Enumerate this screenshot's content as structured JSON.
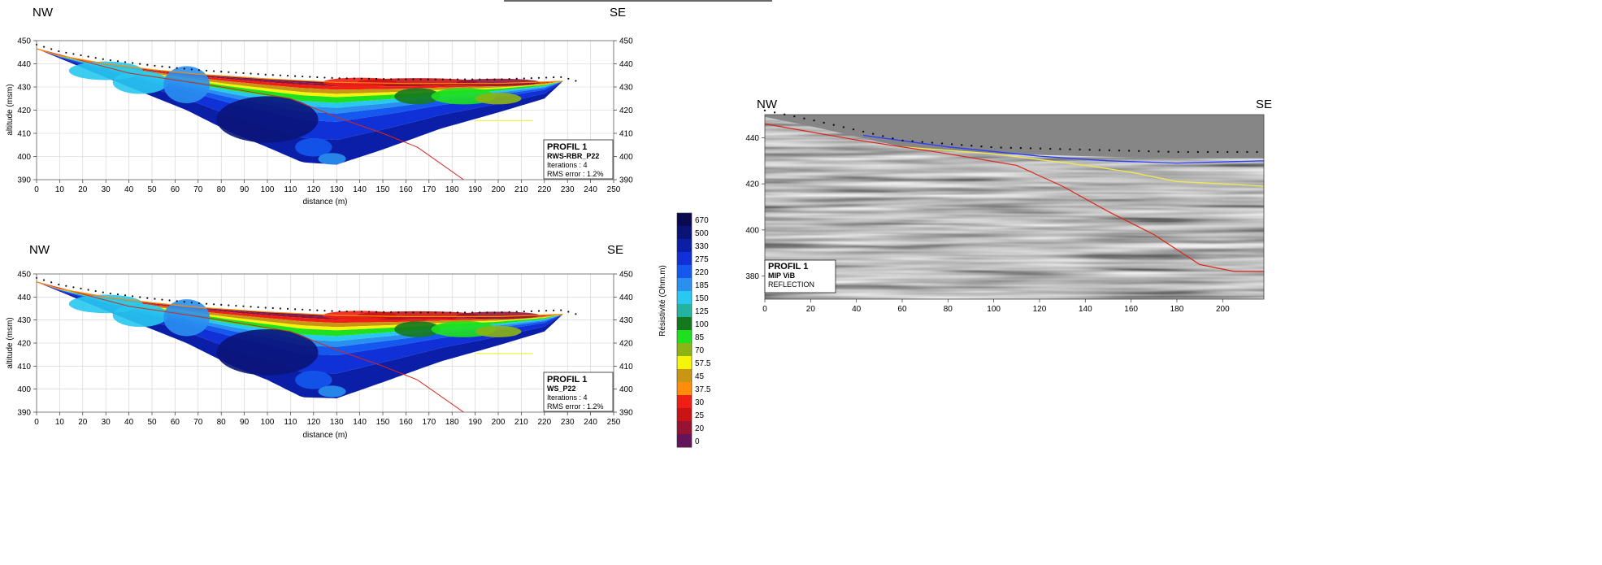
{
  "panels": [
    {
      "left_label": "NW",
      "right_label": "SE",
      "legend_title": "PROFIL 1",
      "legend_code": "RWS-RBR_P22",
      "legend_iter": "Iterations : 4",
      "legend_rms": "RMS error : 1.2%"
    },
    {
      "left_label": "NW",
      "right_label": "SE",
      "legend_title": "PROFIL 1",
      "legend_code": "WS_P22",
      "legend_iter": "Iterations : 4",
      "legend_rms": "RMS error : 1.2%"
    }
  ],
  "seismic": {
    "left_label": "NW",
    "right_label": "SE",
    "legend_title": "PROFIL 1",
    "legend_code": "MIP ViB",
    "legend_sub": "REFLECTION"
  },
  "colorbar": {
    "title": "Résistivité (Ohm.m)",
    "levels": [
      {
        "label": "670",
        "color": "#0a0a50"
      },
      {
        "label": "500",
        "color": "#0a1478"
      },
      {
        "label": "330",
        "color": "#0a1ea8"
      },
      {
        "label": "275",
        "color": "#1030d8"
      },
      {
        "label": "220",
        "color": "#1458f0"
      },
      {
        "label": "185",
        "color": "#2a90f0"
      },
      {
        "label": "150",
        "color": "#28c8f0"
      },
      {
        "label": "125",
        "color": "#22b4a0"
      },
      {
        "label": "100",
        "color": "#14781e"
      },
      {
        "label": "85",
        "color": "#1ee01e"
      },
      {
        "label": "70",
        "color": "#8cb414"
      },
      {
        "label": "57.5",
        "color": "#f5f50a"
      },
      {
        "label": "45",
        "color": "#c89614"
      },
      {
        "label": "37.5",
        "color": "#ff8c0a"
      },
      {
        "label": "30",
        "color": "#f01e14"
      },
      {
        "label": "25",
        "color": "#c81414"
      },
      {
        "label": "20",
        "color": "#961432"
      },
      {
        "label": "0",
        "color": "#64145a"
      }
    ]
  },
  "chart_data": [
    {
      "type": "heatmap",
      "title": "",
      "xlabel": "distance (m)",
      "ylabel": "altitude (msm)",
      "xlim": [
        0,
        250
      ],
      "ylim": [
        390,
        450
      ],
      "x_ticks": [
        "0",
        "10",
        "20",
        "30",
        "40",
        "50",
        "60",
        "70",
        "80",
        "90",
        "100",
        "110",
        "120",
        "130",
        "140",
        "150",
        "160",
        "170",
        "180",
        "190",
        "200",
        "210",
        "220",
        "230",
        "240",
        "250"
      ],
      "y_ticks": [
        "390",
        "400",
        "410",
        "420",
        "430",
        "440",
        "450"
      ],
      "grid": true,
      "surface": [
        [
          0,
          446.5
        ],
        [
          10,
          443.5
        ],
        [
          30,
          440
        ],
        [
          50,
          437.5
        ],
        [
          70,
          435.5
        ],
        [
          100,
          433.5
        ],
        [
          130,
          432
        ],
        [
          160,
          431.5
        ],
        [
          200,
          431.5
        ],
        [
          228,
          432.5
        ]
      ],
      "inversion_bottom": [
        [
          0,
          446.5
        ],
        [
          40,
          430
        ],
        [
          65,
          420
        ],
        [
          85,
          410
        ],
        [
          100,
          404
        ],
        [
          115,
          397.5
        ],
        [
          130,
          396.5
        ],
        [
          150,
          403
        ],
        [
          175,
          412
        ],
        [
          200,
          419
        ],
        [
          220,
          425
        ],
        [
          228,
          432.5
        ]
      ],
      "red_interface": [
        [
          0,
          446.5
        ],
        [
          40,
          436
        ],
        [
          80,
          430
        ],
        [
          110,
          425
        ],
        [
          130,
          417
        ],
        [
          150,
          410
        ],
        [
          165,
          404
        ],
        [
          185,
          390
        ]
      ],
      "yellow_line": [
        [
          190,
          415.5
        ],
        [
          215,
          415.5
        ]
      ]
    },
    {
      "type": "heatmap",
      "title": "",
      "xlabel": "distance (m)",
      "ylabel": "altitude (msm)",
      "xlim": [
        0,
        250
      ],
      "ylim": [
        390,
        450
      ],
      "x_ticks": [
        "0",
        "10",
        "20",
        "30",
        "40",
        "50",
        "60",
        "70",
        "80",
        "90",
        "100",
        "110",
        "120",
        "130",
        "140",
        "150",
        "160",
        "170",
        "180",
        "190",
        "200",
        "210",
        "220",
        "230",
        "240",
        "250"
      ],
      "y_ticks": [
        "390",
        "400",
        "410",
        "420",
        "430",
        "440",
        "450"
      ],
      "grid": true,
      "surface": [
        [
          0,
          446.5
        ],
        [
          10,
          443.5
        ],
        [
          30,
          440
        ],
        [
          50,
          437.5
        ],
        [
          70,
          435.5
        ],
        [
          100,
          433.5
        ],
        [
          130,
          432
        ],
        [
          160,
          431.5
        ],
        [
          200,
          431.5
        ],
        [
          228,
          432.5
        ]
      ],
      "inversion_bottom": [
        [
          0,
          446.5
        ],
        [
          40,
          430
        ],
        [
          65,
          420
        ],
        [
          85,
          410
        ],
        [
          100,
          404
        ],
        [
          115,
          396.5
        ],
        [
          130,
          396
        ],
        [
          150,
          403
        ],
        [
          175,
          412
        ],
        [
          200,
          419
        ],
        [
          220,
          425
        ],
        [
          228,
          432.5
        ]
      ],
      "red_interface": [
        [
          0,
          446.5
        ],
        [
          40,
          436
        ],
        [
          80,
          430
        ],
        [
          110,
          425
        ],
        [
          130,
          417
        ],
        [
          150,
          410
        ],
        [
          165,
          404
        ],
        [
          185,
          390
        ]
      ],
      "yellow_line": [
        [
          190,
          415.5
        ],
        [
          215,
          415.5
        ]
      ]
    },
    {
      "type": "heatmap",
      "title": "",
      "xlabel": "",
      "ylabel": "",
      "xlim": [
        0,
        218
      ],
      "ylim": [
        370,
        450
      ],
      "x_ticks": [
        "0",
        "20",
        "40",
        "60",
        "80",
        "100",
        "120",
        "140",
        "160",
        "180",
        "200"
      ],
      "y_ticks": [
        "380",
        "400",
        "420",
        "440"
      ],
      "grid": false,
      "red_horizon": [
        [
          0,
          446
        ],
        [
          40,
          439
        ],
        [
          80,
          433
        ],
        [
          110,
          428
        ],
        [
          130,
          419
        ],
        [
          150,
          408
        ],
        [
          170,
          398
        ],
        [
          190,
          385
        ],
        [
          205,
          382
        ],
        [
          218,
          382
        ]
      ],
      "yellow_horizon": [
        [
          60,
          436
        ],
        [
          100,
          433
        ],
        [
          140,
          428
        ],
        [
          160,
          425
        ],
        [
          180,
          421
        ],
        [
          200,
          420
        ],
        [
          218,
          419
        ]
      ],
      "blue_horizon": [
        [
          43,
          441
        ],
        [
          80,
          436
        ],
        [
          120,
          432
        ],
        [
          150,
          430
        ],
        [
          180,
          429
        ],
        [
          218,
          430
        ]
      ]
    }
  ]
}
